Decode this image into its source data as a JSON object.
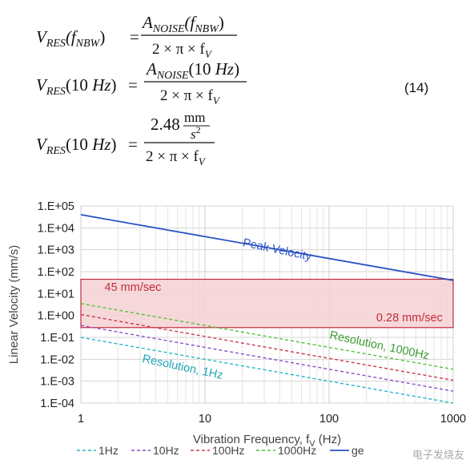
{
  "equations": {
    "eq1": {
      "lhs_v": "V",
      "lhs_sub": "RES",
      "lhs_arg": "(f",
      "lhs_arg_sub": "NBW",
      "lhs_close": ")",
      "eq": "=",
      "num_a": "A",
      "num_sub": "NOISE",
      "num_arg": "(f",
      "num_arg_sub": "NBW",
      "num_close": ")",
      "den": "2 × π × f",
      "den_sub": "V"
    },
    "eq2": {
      "lhs_v": "V",
      "lhs_sub": "RES",
      "lhs_arg": "(10 ",
      "lhs_arg_unit": "Hz",
      "lhs_close": ")",
      "eq": "=",
      "num_a": "A",
      "num_sub": "NOISE",
      "num_arg": "(10 ",
      "num_arg_unit": "Hz",
      "num_close": ")",
      "den": "2 × π × f",
      "den_sub": "V"
    },
    "eq3": {
      "lhs_v": "V",
      "lhs_sub": "RES",
      "lhs_arg": "(10 ",
      "lhs_arg_unit": "Hz",
      "lhs_close": ")",
      "eq": "=",
      "num_value": "2.48",
      "num_unit_top": "mm",
      "num_unit_bottom": "s",
      "num_unit_exp": "2",
      "den": "2 × π × f",
      "den_sub": "V"
    },
    "number": "(14)"
  },
  "chart_data": {
    "type": "line",
    "x_scale": "log",
    "y_scale": "log",
    "xlim": [
      1,
      1000
    ],
    "ylim": [
      0.0001,
      100000
    ],
    "xlabel": "Vibration Frequency, f",
    "xlabel_sub": "V",
    "xlabel_unit": " (Hz)",
    "ylabel": "Linear Velocity (mm/s)",
    "x_ticks": [
      "1",
      "10",
      "100",
      "1000"
    ],
    "y_ticks": [
      "1.E-04",
      "1.E-03",
      "1.E-02",
      "1.E-01",
      "1.E+00",
      "1.E+01",
      "1.E+02",
      "1.E+03",
      "1.E+04",
      "1.E+05"
    ],
    "grid": true,
    "series": [
      {
        "name": "1Hz",
        "color": "#1fb7c9",
        "dash": true,
        "x": [
          1,
          1000
        ],
        "y": [
          0.1,
          0.0001
        ]
      },
      {
        "name": "10Hz",
        "color": "#8a4fc7",
        "dash": true,
        "x": [
          1,
          1000
        ],
        "y": [
          0.35,
          0.00035
        ]
      },
      {
        "name": "100Hz",
        "color": "#c93a4e",
        "dash": true,
        "x": [
          1,
          1000
        ],
        "y": [
          1.1,
          0.0011
        ]
      },
      {
        "name": "1000Hz",
        "color": "#55c13d",
        "dash": true,
        "x": [
          1,
          1000
        ],
        "y": [
          3.5,
          0.0035
        ]
      },
      {
        "name": "Peak Velocity",
        "color": "#2a52c4",
        "dash": false,
        "x": [
          1,
          1000
        ],
        "y": [
          40000,
          40
        ]
      }
    ],
    "legend": {
      "placement": "bottom",
      "entries": [
        "1Hz",
        "10Hz",
        "100Hz",
        "1000Hz",
        "ge"
      ]
    },
    "range_box": {
      "x": [
        1,
        1000
      ],
      "y": [
        0.28,
        45
      ],
      "fill": "#f6d1d3",
      "stroke": "#c22c3c"
    },
    "annotations": [
      {
        "text": "Peak Velocity",
        "color": "#2a52c4",
        "x": 20,
        "y": 1500,
        "rotate": 12
      },
      {
        "text": "45 mm/sec",
        "color": "#c22c3c",
        "x": 1.55,
        "y": 13,
        "rotate": 0
      },
      {
        "text": "0.28 mm/sec",
        "color": "#c22c3c",
        "x": 240,
        "y": 0.55,
        "rotate": 0
      },
      {
        "text": "Resolution, 1000Hz",
        "color": "#3a9b32",
        "x": 100,
        "y": 0.09,
        "rotate": 12
      },
      {
        "text": "Resolution, 1Hz",
        "color": "#1fa6b9",
        "x": 3.1,
        "y": 0.0075,
        "rotate": 12
      }
    ]
  },
  "watermark": "电子发烧友"
}
